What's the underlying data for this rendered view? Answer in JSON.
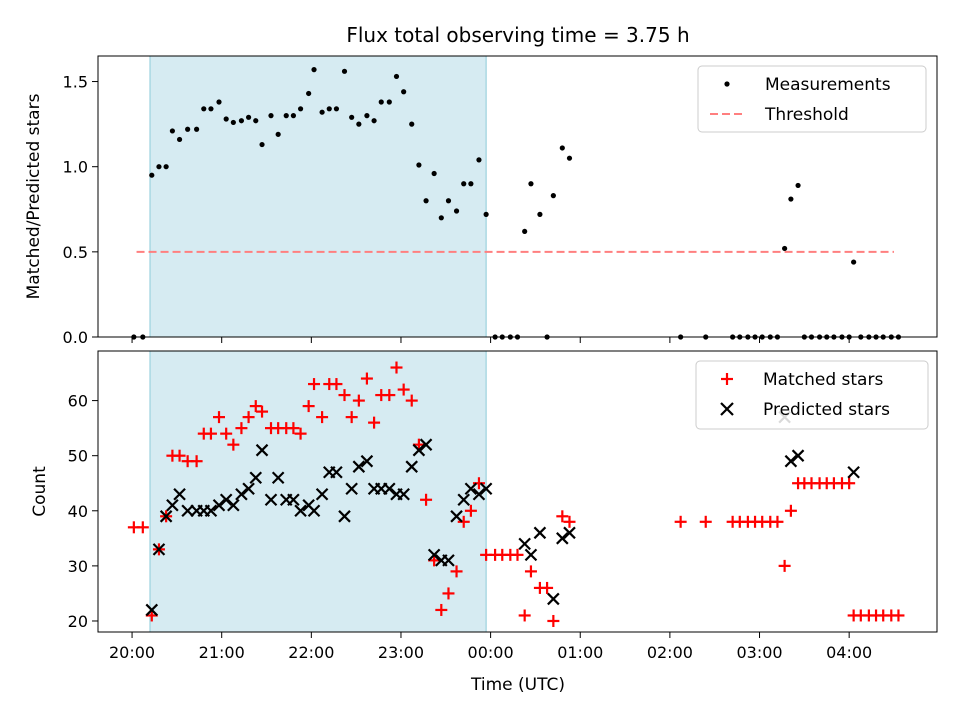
{
  "chart_data": [
    {
      "type": "scatter",
      "title": "Flux total observing time = 3.75 h",
      "xlabel": "",
      "ylabel": "Matched/Predicted stars",
      "x_unit": "hours (UTC clock, values past 24 are after midnight)",
      "xlim": [
        19.62,
        28.98
      ],
      "ylim": [
        0,
        1.65
      ],
      "yticks": [
        "0.0",
        "0.5",
        "1.0",
        "1.5"
      ],
      "shaded_interval": [
        20.2,
        23.95
      ],
      "legend_position": "upper right",
      "legend": [
        "Measurements",
        "Threshold"
      ],
      "threshold": {
        "name": "Threshold",
        "value": 0.5,
        "x_range": [
          20.05,
          28.5
        ],
        "color": "#ff7f7f"
      },
      "series": [
        {
          "name": "Measurements",
          "color": "#000000",
          "points": [
            [
              20.02,
              0
            ],
            [
              20.12,
              0
            ],
            [
              20.22,
              0.95
            ],
            [
              20.3,
              1.0
            ],
            [
              20.38,
              1.0
            ],
            [
              20.45,
              1.21
            ],
            [
              20.53,
              1.16
            ],
            [
              20.62,
              1.22
            ],
            [
              20.72,
              1.22
            ],
            [
              20.8,
              1.34
            ],
            [
              20.88,
              1.34
            ],
            [
              20.97,
              1.38
            ],
            [
              21.05,
              1.28
            ],
            [
              21.13,
              1.26
            ],
            [
              21.22,
              1.27
            ],
            [
              21.3,
              1.29
            ],
            [
              21.38,
              1.27
            ],
            [
              21.45,
              1.13
            ],
            [
              21.55,
              1.3
            ],
            [
              21.63,
              1.19
            ],
            [
              21.72,
              1.3
            ],
            [
              21.8,
              1.3
            ],
            [
              21.88,
              1.34
            ],
            [
              21.97,
              1.43
            ],
            [
              22.03,
              1.57
            ],
            [
              22.12,
              1.32
            ],
            [
              22.2,
              1.34
            ],
            [
              22.28,
              1.34
            ],
            [
              22.37,
              1.56
            ],
            [
              22.45,
              1.29
            ],
            [
              22.53,
              1.25
            ],
            [
              22.62,
              1.3
            ],
            [
              22.7,
              1.27
            ],
            [
              22.78,
              1.38
            ],
            [
              22.87,
              1.38
            ],
            [
              22.95,
              1.53
            ],
            [
              23.03,
              1.44
            ],
            [
              23.12,
              1.25
            ],
            [
              23.2,
              1.01
            ],
            [
              23.28,
              0.8
            ],
            [
              23.37,
              0.96
            ],
            [
              23.45,
              0.7
            ],
            [
              23.53,
              0.8
            ],
            [
              23.62,
              0.74
            ],
            [
              23.7,
              0.9
            ],
            [
              23.78,
              0.9
            ],
            [
              23.87,
              1.04
            ],
            [
              23.95,
              0.72
            ],
            [
              24.05,
              0
            ],
            [
              24.13,
              0
            ],
            [
              24.22,
              0
            ],
            [
              24.3,
              0
            ],
            [
              24.38,
              0.62
            ],
            [
              24.45,
              0.9
            ],
            [
              24.55,
              0.72
            ],
            [
              24.63,
              0
            ],
            [
              24.7,
              0.83
            ],
            [
              24.8,
              1.11
            ],
            [
              24.88,
              1.05
            ],
            [
              26.12,
              0
            ],
            [
              26.4,
              0
            ],
            [
              26.7,
              0
            ],
            [
              26.78,
              0
            ],
            [
              26.87,
              0
            ],
            [
              26.95,
              0
            ],
            [
              27.03,
              0
            ],
            [
              27.12,
              0
            ],
            [
              27.2,
              0
            ],
            [
              27.28,
              0.52
            ],
            [
              27.35,
              0.81
            ],
            [
              27.43,
              0.89
            ],
            [
              27.5,
              0
            ],
            [
              27.58,
              0
            ],
            [
              27.67,
              0
            ],
            [
              27.75,
              0
            ],
            [
              27.83,
              0
            ],
            [
              27.92,
              0
            ],
            [
              28.0,
              0
            ],
            [
              28.05,
              0.44
            ],
            [
              28.13,
              0
            ],
            [
              28.22,
              0
            ],
            [
              28.3,
              0
            ],
            [
              28.38,
              0
            ],
            [
              28.47,
              0
            ],
            [
              28.55,
              0
            ]
          ]
        }
      ]
    },
    {
      "type": "scatter",
      "title": "",
      "xlabel": "Time (UTC)",
      "ylabel": "Count",
      "x_unit": "hours (UTC clock, values past 24 are after midnight)",
      "xlim": [
        19.62,
        28.98
      ],
      "ylim": [
        18,
        69
      ],
      "xticks": [
        20,
        21,
        22,
        23,
        24,
        25,
        26,
        27,
        28
      ],
      "xtick_labels": [
        "20:00",
        "21:00",
        "22:00",
        "23:00",
        "00:00",
        "01:00",
        "02:00",
        "03:00",
        "04:00"
      ],
      "yticks": [
        20,
        30,
        40,
        50,
        60
      ],
      "shaded_interval": [
        20.2,
        23.95
      ],
      "legend_position": "upper right",
      "legend": [
        "Matched stars",
        "Predicted stars"
      ],
      "series": [
        {
          "name": "Matched stars",
          "marker": "plus",
          "color": "#ff0000",
          "points": [
            [
              20.02,
              37
            ],
            [
              20.12,
              37
            ],
            [
              20.22,
              21
            ],
            [
              20.3,
              33
            ],
            [
              20.38,
              39
            ],
            [
              20.45,
              50
            ],
            [
              20.53,
              50
            ],
            [
              20.62,
              49
            ],
            [
              20.72,
              49
            ],
            [
              20.8,
              54
            ],
            [
              20.88,
              54
            ],
            [
              20.97,
              57
            ],
            [
              21.05,
              54
            ],
            [
              21.13,
              52
            ],
            [
              21.22,
              55
            ],
            [
              21.3,
              57
            ],
            [
              21.38,
              59
            ],
            [
              21.45,
              58
            ],
            [
              21.55,
              55
            ],
            [
              21.63,
              55
            ],
            [
              21.72,
              55
            ],
            [
              21.8,
              55
            ],
            [
              21.88,
              54
            ],
            [
              21.97,
              59
            ],
            [
              22.03,
              63
            ],
            [
              22.12,
              57
            ],
            [
              22.2,
              63
            ],
            [
              22.28,
              63
            ],
            [
              22.37,
              61
            ],
            [
              22.45,
              57
            ],
            [
              22.53,
              60
            ],
            [
              22.62,
              64
            ],
            [
              22.7,
              56
            ],
            [
              22.78,
              61
            ],
            [
              22.87,
              61
            ],
            [
              22.95,
              66
            ],
            [
              23.03,
              62
            ],
            [
              23.12,
              60
            ],
            [
              23.2,
              52
            ],
            [
              23.28,
              42
            ],
            [
              23.37,
              31
            ],
            [
              23.45,
              22
            ],
            [
              23.53,
              25
            ],
            [
              23.62,
              29
            ],
            [
              23.7,
              38
            ],
            [
              23.78,
              40
            ],
            [
              23.87,
              45
            ],
            [
              23.95,
              32
            ],
            [
              24.05,
              32
            ],
            [
              24.13,
              32
            ],
            [
              24.22,
              32
            ],
            [
              24.3,
              32
            ],
            [
              24.38,
              21
            ],
            [
              24.45,
              29
            ],
            [
              24.55,
              26
            ],
            [
              24.63,
              26
            ],
            [
              24.7,
              20
            ],
            [
              24.8,
              39
            ],
            [
              24.88,
              38
            ],
            [
              26.12,
              38
            ],
            [
              26.4,
              38
            ],
            [
              26.7,
              38
            ],
            [
              26.78,
              38
            ],
            [
              26.87,
              38
            ],
            [
              26.95,
              38
            ],
            [
              27.03,
              38
            ],
            [
              27.12,
              38
            ],
            [
              27.2,
              38
            ],
            [
              27.28,
              30
            ],
            [
              27.35,
              40
            ],
            [
              27.43,
              45
            ],
            [
              27.5,
              45
            ],
            [
              27.58,
              45
            ],
            [
              27.67,
              45
            ],
            [
              27.75,
              45
            ],
            [
              27.83,
              45
            ],
            [
              27.92,
              45
            ],
            [
              28.0,
              45
            ],
            [
              28.05,
              21
            ],
            [
              28.13,
              21
            ],
            [
              28.22,
              21
            ],
            [
              28.3,
              21
            ],
            [
              28.38,
              21
            ],
            [
              28.47,
              21
            ],
            [
              28.55,
              21
            ]
          ]
        },
        {
          "name": "Predicted stars",
          "marker": "x",
          "color": "#000000",
          "points": [
            [
              20.22,
              22
            ],
            [
              20.3,
              33
            ],
            [
              20.38,
              39
            ],
            [
              20.45,
              41
            ],
            [
              20.53,
              43
            ],
            [
              20.62,
              40
            ],
            [
              20.72,
              40
            ],
            [
              20.8,
              40
            ],
            [
              20.88,
              40
            ],
            [
              20.97,
              41
            ],
            [
              21.05,
              42
            ],
            [
              21.13,
              41
            ],
            [
              21.22,
              43
            ],
            [
              21.3,
              44
            ],
            [
              21.38,
              46
            ],
            [
              21.45,
              51
            ],
            [
              21.55,
              42
            ],
            [
              21.63,
              46
            ],
            [
              21.72,
              42
            ],
            [
              21.8,
              42
            ],
            [
              21.88,
              40
            ],
            [
              21.97,
              41
            ],
            [
              22.03,
              40
            ],
            [
              22.12,
              43
            ],
            [
              22.2,
              47
            ],
            [
              22.28,
              47
            ],
            [
              22.37,
              39
            ],
            [
              22.45,
              44
            ],
            [
              22.53,
              48
            ],
            [
              22.62,
              49
            ],
            [
              22.7,
              44
            ],
            [
              22.78,
              44
            ],
            [
              22.87,
              44
            ],
            [
              22.95,
              43
            ],
            [
              23.03,
              43
            ],
            [
              23.12,
              48
            ],
            [
              23.2,
              51
            ],
            [
              23.28,
              52
            ],
            [
              23.37,
              32
            ],
            [
              23.45,
              31
            ],
            [
              23.53,
              31
            ],
            [
              23.62,
              39
            ],
            [
              23.7,
              42
            ],
            [
              23.78,
              44
            ],
            [
              23.87,
              43
            ],
            [
              23.95,
              44
            ],
            [
              24.38,
              34
            ],
            [
              24.45,
              32
            ],
            [
              24.55,
              36
            ],
            [
              24.7,
              24
            ],
            [
              24.8,
              35
            ],
            [
              24.88,
              36
            ],
            [
              27.28,
              57
            ],
            [
              27.35,
              49
            ],
            [
              27.43,
              50
            ],
            [
              28.05,
              47
            ]
          ]
        }
      ]
    }
  ]
}
